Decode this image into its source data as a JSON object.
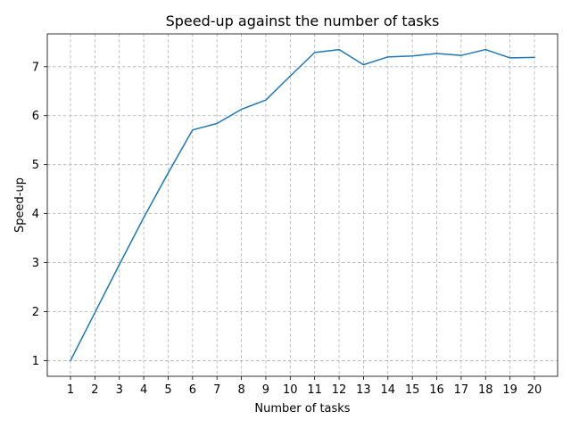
{
  "chart_data": {
    "type": "line",
    "title": "Speed-up against the number of tasks",
    "xlabel": "Number of tasks",
    "ylabel": "Speed-up",
    "x": [
      1,
      2,
      3,
      4,
      5,
      6,
      7,
      8,
      9,
      10,
      11,
      12,
      13,
      14,
      15,
      16,
      17,
      18,
      19,
      20
    ],
    "series": [
      {
        "values": [
          1.0,
          1.98,
          2.96,
          3.92,
          4.83,
          5.71,
          5.84,
          6.13,
          6.32,
          6.81,
          7.29,
          7.35,
          7.04,
          7.2,
          7.22,
          7.27,
          7.23,
          7.35,
          7.18,
          7.19
        ],
        "color": "#1f77b4"
      }
    ],
    "xticks": [
      1,
      2,
      3,
      4,
      5,
      6,
      7,
      8,
      9,
      10,
      11,
      12,
      13,
      14,
      15,
      16,
      17,
      18,
      19,
      20
    ],
    "yticks": [
      1,
      2,
      3,
      4,
      5,
      6,
      7
    ],
    "xlim": [
      0.05,
      20.95
    ],
    "ylim": [
      0.68,
      7.67
    ],
    "grid": true
  }
}
